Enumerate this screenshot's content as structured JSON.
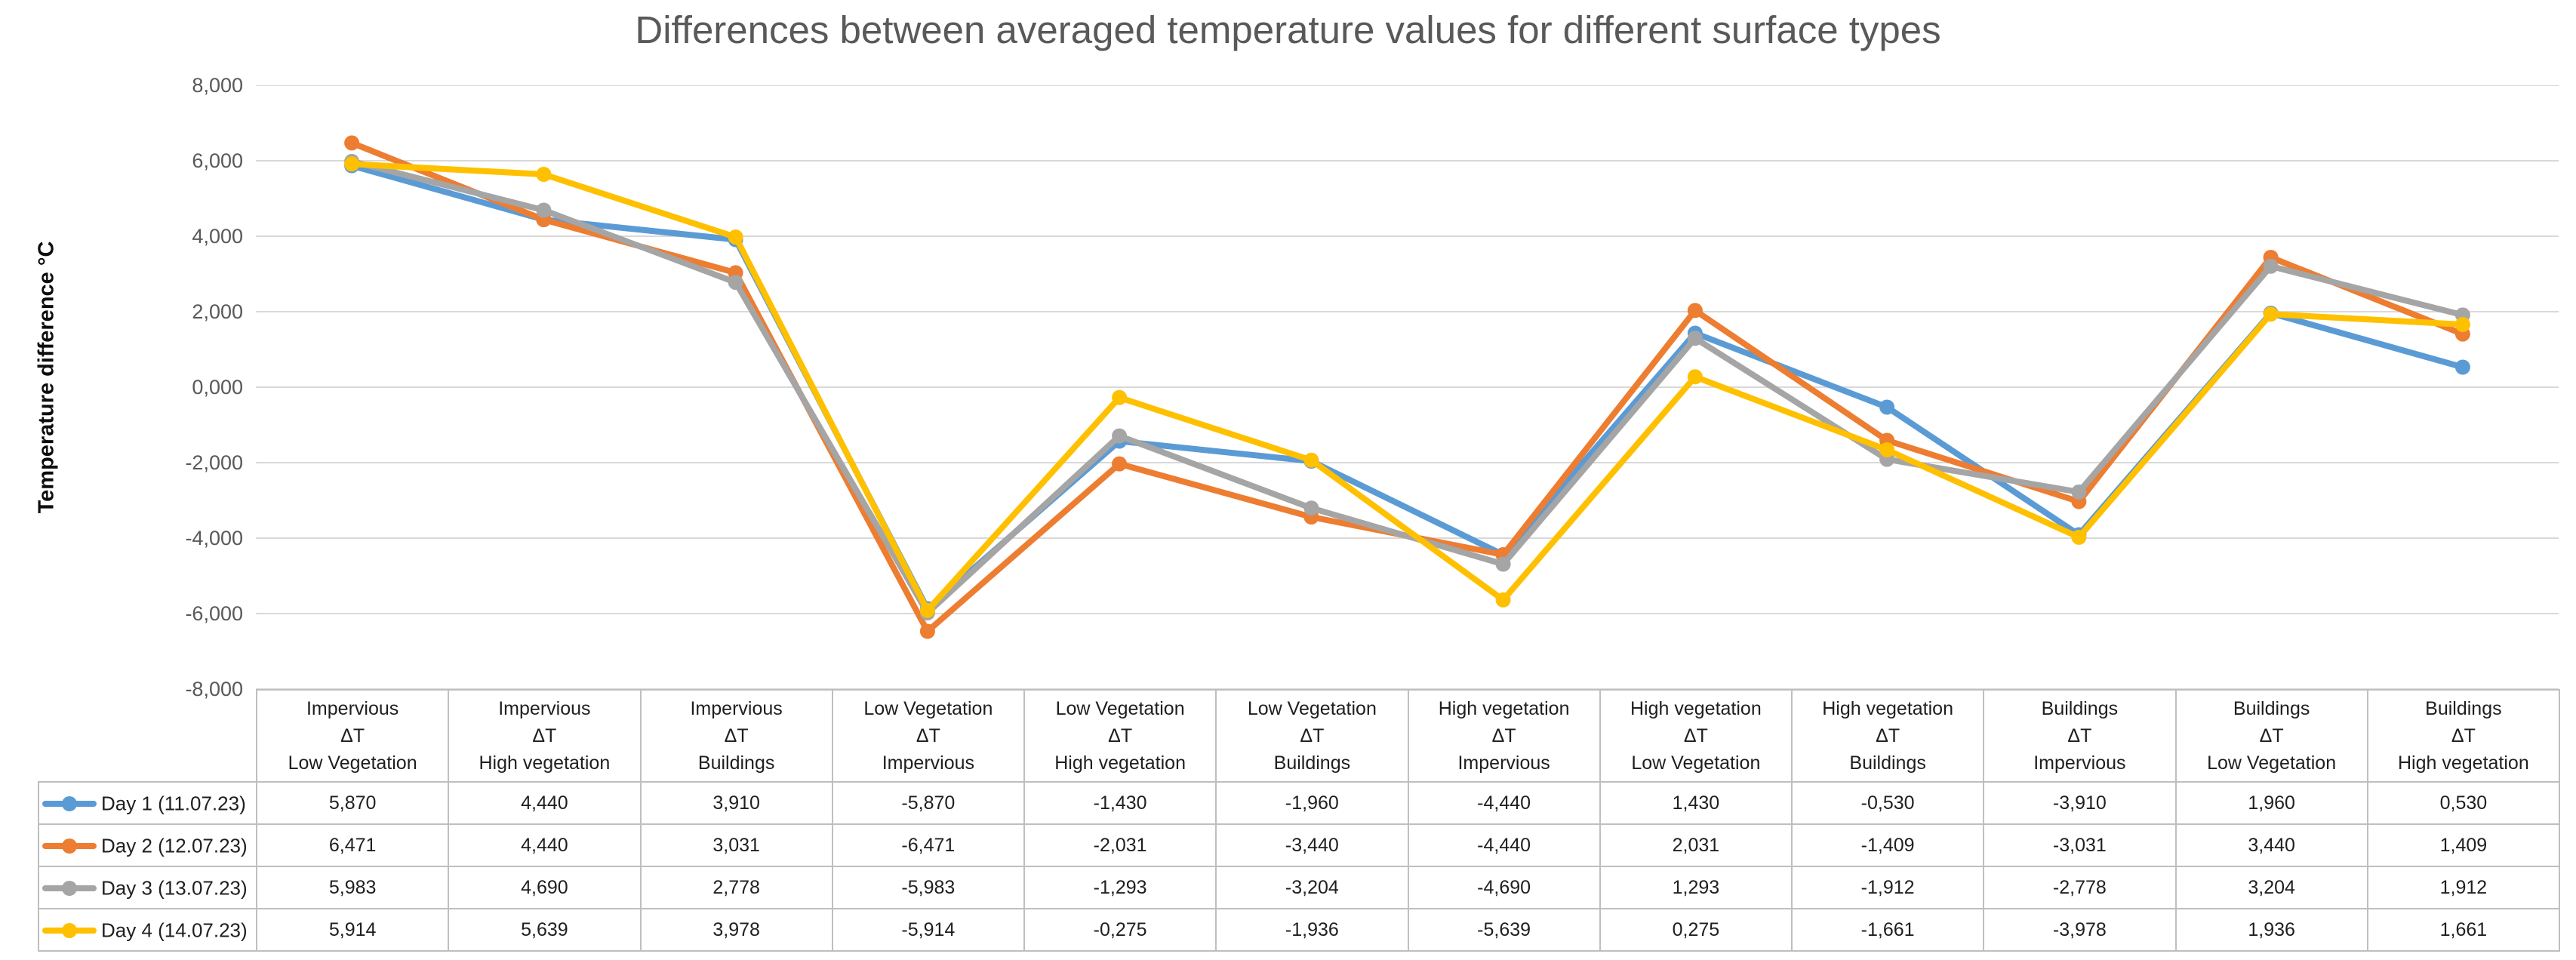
{
  "chart_data": {
    "type": "line",
    "title": "Differences between averaged temperature values for different surface types",
    "xlabel": "",
    "ylabel": "Temperature difference °C",
    "ylim": [
      -8,
      8
    ],
    "ytick_step": 2,
    "y_tick_labels": [
      "8,000",
      "6,000",
      "4,000",
      "2,000",
      "0,000",
      "-2,000",
      "-4,000",
      "-6,000",
      "-8,000"
    ],
    "grid": true,
    "decimal_separator": ",",
    "legend_position": "data-table-left-column",
    "categories": [
      [
        "Impervious",
        "ΔT",
        "Low Vegetation"
      ],
      [
        "Impervious",
        "ΔT",
        "High vegetation"
      ],
      [
        "Impervious",
        "ΔT",
        "Buildings"
      ],
      [
        "Low Vegetation",
        "ΔT",
        "Impervious"
      ],
      [
        "Low Vegetation",
        "ΔT",
        "High vegetation"
      ],
      [
        "Low Vegetation",
        "ΔT",
        "Buildings"
      ],
      [
        "High vegetation",
        "ΔT",
        "Impervious"
      ],
      [
        "High vegetation",
        "ΔT",
        "Low Vegetation"
      ],
      [
        "High vegetation",
        "ΔT",
        "Buildings"
      ],
      [
        "Buildings",
        "ΔT",
        "Impervious"
      ],
      [
        "Buildings",
        "ΔT",
        "Low Vegetation"
      ],
      [
        "Buildings",
        "ΔT",
        "High vegetation"
      ]
    ],
    "series": [
      {
        "name": "Day 1 (11.07.23)",
        "color": "#5B9BD5",
        "marker": "circle",
        "values": [
          5.87,
          4.44,
          3.91,
          -5.87,
          -1.43,
          -1.96,
          -4.44,
          1.43,
          -0.53,
          -3.91,
          1.96,
          0.53
        ]
      },
      {
        "name": "Day 2 (12.07.23)",
        "color": "#ED7D31",
        "marker": "circle",
        "values": [
          6.471,
          4.44,
          3.031,
          -6.471,
          -2.031,
          -3.44,
          -4.44,
          2.031,
          -1.409,
          -3.031,
          3.44,
          1.409
        ]
      },
      {
        "name": "Day 3 (13.07.23)",
        "color": "#A5A5A5",
        "marker": "circle",
        "values": [
          5.983,
          4.69,
          2.778,
          -5.983,
          -1.293,
          -3.204,
          -4.69,
          1.293,
          -1.912,
          -2.778,
          3.204,
          1.912
        ]
      },
      {
        "name": "Day 4 (14.07.23)",
        "color": "#FFC000",
        "marker": "circle",
        "values": [
          5.914,
          5.639,
          3.978,
          -5.914,
          -0.275,
          -1.936,
          -5.639,
          0.275,
          -1.661,
          -3.978,
          1.936,
          1.661
        ]
      }
    ],
    "colors": {
      "gridline": "#D9D9D9",
      "axis_text": "#595959",
      "title_text": "#595959",
      "table_border": "#BFBFBF",
      "table_text": "#1F1F1F"
    }
  }
}
